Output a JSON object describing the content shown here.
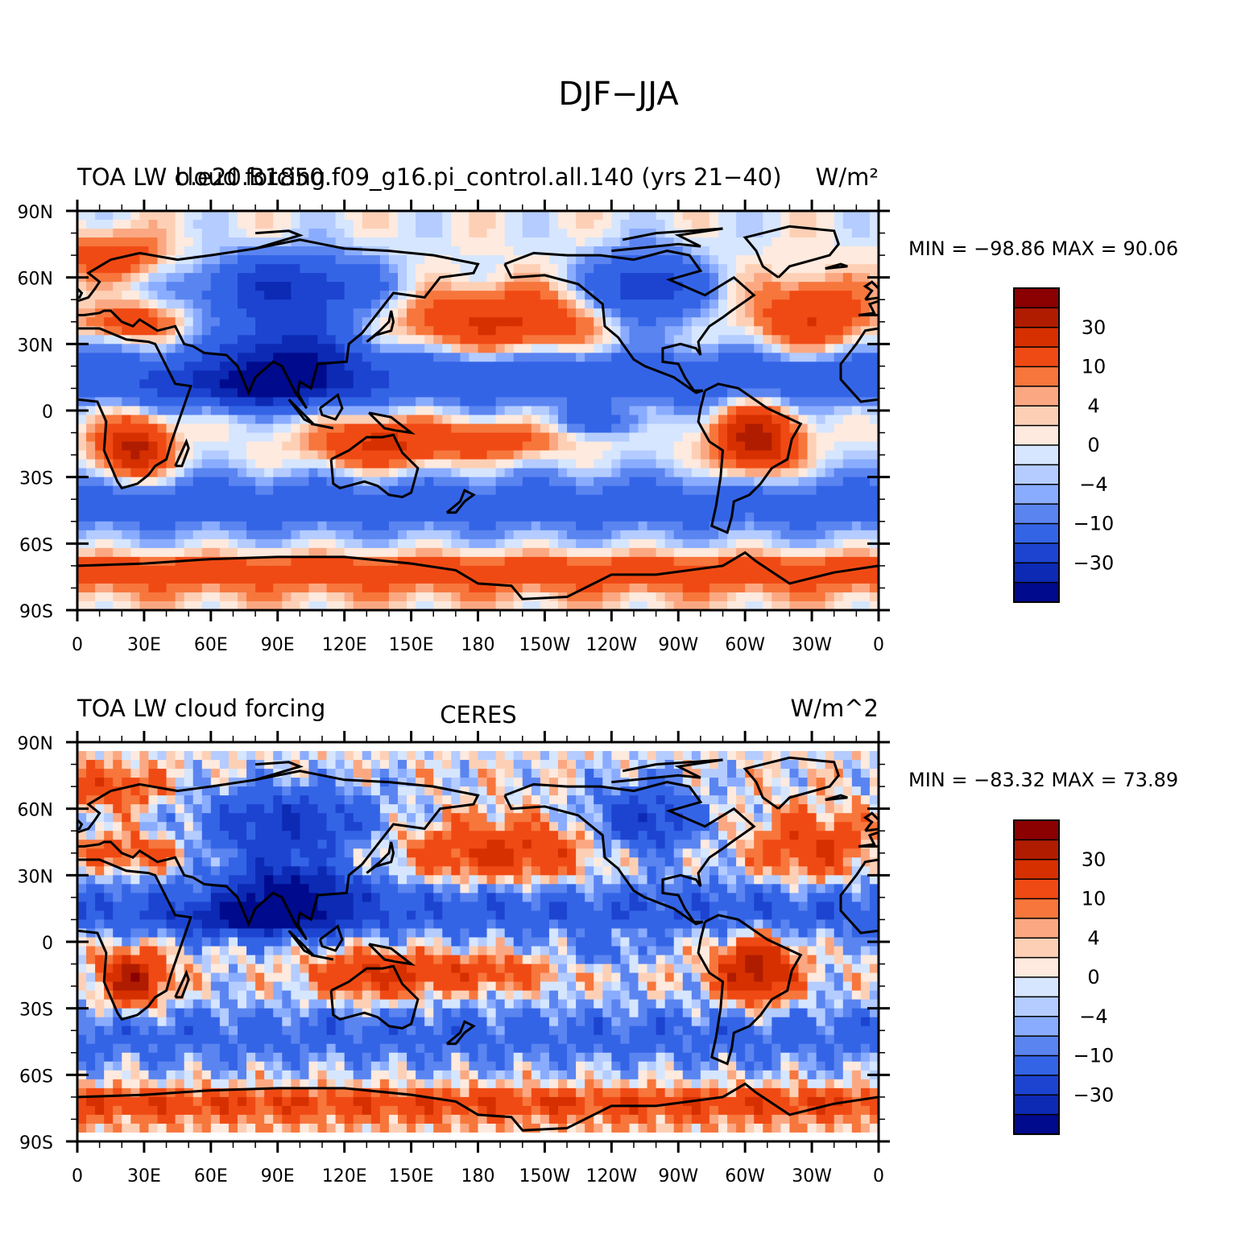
{
  "main_title": "DJF−JJA",
  "panels": [
    {
      "left_title": "TOA LW cloud forcing",
      "center_title": "b.e20.B1850.f09_g16.pi_control.all.140 (yrs 21−40)",
      "units": "W/m²",
      "minmax": "MIN = −98.86  MAX =   90.06",
      "pattern": "model"
    },
    {
      "left_title": "TOA LW cloud forcing",
      "center_title": "CERES",
      "units": "W/m^2",
      "minmax": "MIN = −83.32  MAX =   73.89",
      "pattern": "obs"
    }
  ],
  "axes": {
    "lat_labels": [
      "90N",
      "60N",
      "30N",
      "0",
      "30S",
      "60S",
      "90S"
    ],
    "lon_labels": [
      "0",
      "30E",
      "60E",
      "90E",
      "120E",
      "150E",
      "180",
      "150W",
      "120W",
      "90W",
      "60W",
      "30W",
      "0"
    ]
  },
  "colorbar": {
    "levels": [
      -50,
      -40,
      -30,
      -20,
      -10,
      -6,
      -4,
      -2,
      0,
      2,
      4,
      6,
      10,
      20,
      30,
      40,
      50
    ],
    "labels": [
      "30",
      "10",
      "4",
      "0",
      "−4",
      "−10",
      "−30"
    ],
    "colors_top_to_bottom": [
      "#8b0000",
      "#b01c00",
      "#d63000",
      "#f04a14",
      "#f7763c",
      "#fba882",
      "#fdd0b6",
      "#feeade",
      "#d6e6ff",
      "#b4ccff",
      "#8aacff",
      "#5a84f0",
      "#3464e6",
      "#1c44d0",
      "#0c2ab4",
      "#000a8c"
    ]
  }
}
